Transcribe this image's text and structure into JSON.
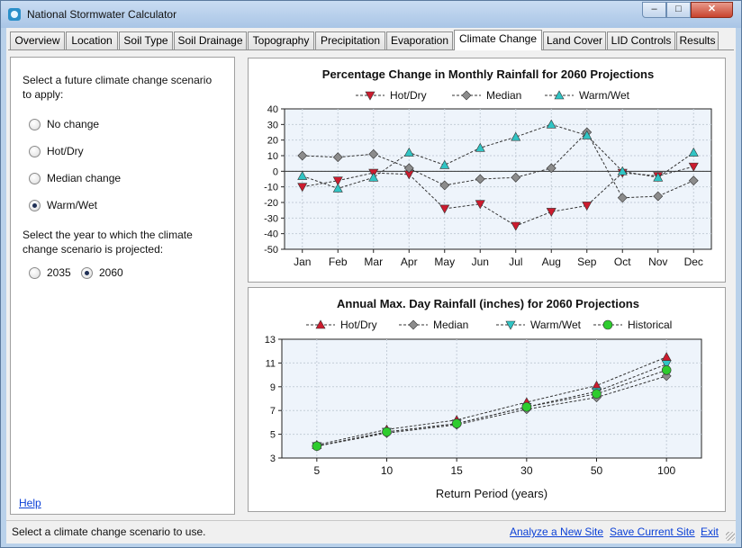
{
  "window": {
    "title": "National Stormwater Calculator",
    "controls": {
      "minimize": "‒",
      "maximize": "□",
      "close": "✕"
    }
  },
  "tabs": [
    "Overview",
    "Location",
    "Soil Type",
    "Soil Drainage",
    "Topography",
    "Precipitation",
    "Evaporation",
    "Climate Change",
    "Land Cover",
    "LID Controls",
    "Results"
  ],
  "active_tab": "Climate Change",
  "left_panel": {
    "scenario_prompt_line1": "Select a future climate change scenario",
    "scenario_prompt_line2": "to apply:",
    "scenarios": [
      {
        "label": "No change",
        "checked": false
      },
      {
        "label": "Hot/Dry",
        "checked": false
      },
      {
        "label": "Median change",
        "checked": false
      },
      {
        "label": "Warm/Wet",
        "checked": true
      }
    ],
    "year_prompt_line1": "Select the year to which the climate",
    "year_prompt_line2": "change scenario is projected:",
    "years": [
      {
        "label": "2035",
        "checked": false
      },
      {
        "label": "2060",
        "checked": true
      }
    ],
    "help": "Help"
  },
  "status": {
    "message": "Select a climate change scenario to use.",
    "links": [
      "Analyze a New Site",
      "Save Current Site",
      "Exit"
    ]
  },
  "chart_data": [
    {
      "type": "line",
      "title": "Percentage Change in Monthly Rainfall for 2060 Projections",
      "categories": [
        "Jan",
        "Feb",
        "Mar",
        "Apr",
        "May",
        "Jun",
        "Jul",
        "Aug",
        "Sep",
        "Oct",
        "Nov",
        "Dec"
      ],
      "ylim": [
        -50,
        40
      ],
      "yticks": [
        40,
        30,
        20,
        10,
        0,
        -10,
        -20,
        -30,
        -40,
        -50
      ],
      "grid": true,
      "legend_position": "top",
      "series": [
        {
          "name": "Hot/Dry",
          "marker": "triangle-down",
          "color": "#cc1b2e",
          "values": [
            -10,
            -6,
            -1,
            -2,
            -24,
            -21,
            -35,
            -26,
            -22,
            -1,
            -3,
            3
          ]
        },
        {
          "name": "Median",
          "marker": "diamond",
          "color": "#8c8c8c",
          "values": [
            10,
            9,
            11,
            2,
            -9,
            -5,
            -4,
            2,
            25,
            -17,
            -16,
            -6
          ]
        },
        {
          "name": "Warm/Wet",
          "marker": "triangle-up",
          "color": "#30c4c4",
          "values": [
            -3,
            -11,
            -4,
            12,
            4,
            15,
            22,
            30,
            23,
            0,
            -4,
            12
          ]
        }
      ]
    },
    {
      "type": "line",
      "title": "Annual Max. Day Rainfall (inches) for 2060 Projections",
      "categories": [
        "5",
        "10",
        "15",
        "30",
        "50",
        "100"
      ],
      "xlabel": "Return Period (years)",
      "ylim": [
        3,
        13
      ],
      "yticks": [
        13,
        11,
        9,
        7,
        5,
        3
      ],
      "grid": true,
      "legend_position": "top",
      "series": [
        {
          "name": "Hot/Dry",
          "marker": "triangle-up",
          "color": "#cc1b2e",
          "values": [
            4.1,
            5.4,
            6.2,
            7.7,
            9.1,
            11.5
          ]
        },
        {
          "name": "Median",
          "marker": "diamond",
          "color": "#8c8c8c",
          "values": [
            4.0,
            5.1,
            5.8,
            7.1,
            8.1,
            9.9
          ]
        },
        {
          "name": "Warm/Wet",
          "marker": "triangle-down",
          "color": "#30c4c4",
          "values": [
            4.0,
            5.2,
            5.9,
            7.3,
            8.6,
            10.9
          ]
        },
        {
          "name": "Historical",
          "marker": "circle",
          "color": "#2ecc2e",
          "values": [
            4.0,
            5.2,
            5.9,
            7.3,
            8.4,
            10.4
          ]
        }
      ]
    }
  ]
}
